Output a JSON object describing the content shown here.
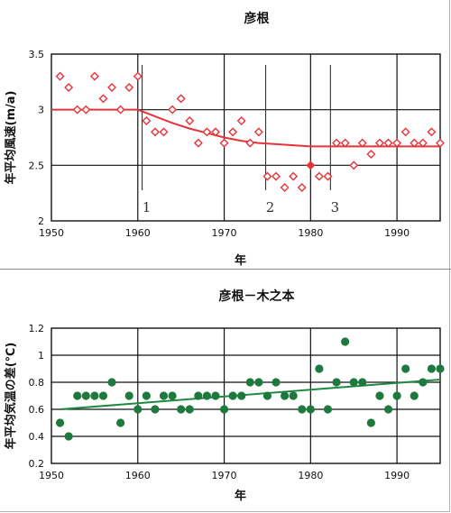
{
  "chart_data": [
    {
      "type": "scatter",
      "title": "彦根",
      "xlabel": "年",
      "ylabel": "年平均風速(m/a)",
      "xlim": [
        1950,
        1995
      ],
      "ylim": [
        2,
        3.5
      ],
      "xticks": [
        "1950",
        "1960",
        "1970",
        "1980",
        "1990"
      ],
      "yticks": [
        "2",
        "2.5",
        "3",
        "3.5"
      ],
      "grid": true,
      "marker_color": "#e8333a",
      "line_color": "#e8333a",
      "x": [
        1951,
        1952,
        1953,
        1954,
        1955,
        1956,
        1957,
        1958,
        1959,
        1960,
        1961,
        1962,
        1963,
        1964,
        1965,
        1966,
        1967,
        1968,
        1969,
        1970,
        1971,
        1972,
        1973,
        1974,
        1975,
        1976,
        1977,
        1978,
        1979,
        1980,
        1981,
        1982,
        1983,
        1984,
        1985,
        1986,
        1987,
        1988,
        1989,
        1990,
        1991,
        1992,
        1993,
        1994,
        1995
      ],
      "y": [
        3.3,
        3.2,
        3.0,
        3.0,
        3.3,
        3.1,
        3.2,
        3.0,
        3.2,
        3.3,
        2.9,
        2.8,
        2.8,
        3.0,
        3.1,
        2.9,
        2.7,
        2.8,
        2.8,
        2.7,
        2.8,
        2.9,
        2.7,
        2.8,
        2.4,
        2.4,
        2.3,
        2.4,
        2.3,
        2.5,
        2.4,
        2.4,
        2.7,
        2.7,
        2.5,
        2.7,
        2.6,
        2.7,
        2.7,
        2.7,
        2.8,
        2.7,
        2.7,
        2.8,
        2.7
      ],
      "trend": {
        "x": [
          1950,
          1960,
          1962,
          1964,
          1966,
          1968,
          1970,
          1972,
          1974,
          1976,
          1978,
          1980,
          1981,
          1995
        ],
        "y": [
          3.0,
          3.0,
          2.94,
          2.88,
          2.83,
          2.79,
          2.75,
          2.72,
          2.7,
          2.69,
          2.68,
          2.67,
          2.67,
          2.67
        ]
      },
      "annotations": [
        {
          "x": 1960.5,
          "label": "1"
        },
        {
          "x": 1974.8,
          "label": "2"
        },
        {
          "x": 1982.3,
          "label": "3"
        }
      ]
    },
    {
      "type": "scatter",
      "title": "彦根－木之本",
      "xlabel": "年",
      "ylabel": "年平均気温の差(℃)",
      "xlim": [
        1950,
        1995
      ],
      "ylim": [
        0.2,
        1.2
      ],
      "xticks": [
        "1950",
        "1960",
        "1970",
        "1980",
        "1990"
      ],
      "yticks": [
        "0.2",
        "0.4",
        "0.6",
        "0.8",
        "1",
        "1.2"
      ],
      "grid": true,
      "marker_color": "#1e7a3c",
      "line_color": "#1e8a40",
      "x": [
        1951,
        1952,
        1953,
        1954,
        1955,
        1956,
        1957,
        1958,
        1959,
        1960,
        1961,
        1962,
        1963,
        1964,
        1965,
        1966,
        1967,
        1968,
        1969,
        1970,
        1971,
        1972,
        1973,
        1974,
        1975,
        1976,
        1977,
        1978,
        1979,
        1980,
        1981,
        1982,
        1983,
        1984,
        1985,
        1986,
        1987,
        1988,
        1989,
        1990,
        1991,
        1992,
        1993,
        1994,
        1995
      ],
      "y": [
        0.5,
        0.4,
        0.7,
        0.7,
        0.7,
        0.7,
        0.8,
        0.5,
        0.7,
        0.6,
        0.7,
        0.6,
        0.7,
        0.7,
        0.6,
        0.6,
        0.7,
        0.7,
        0.7,
        0.6,
        0.7,
        0.7,
        0.8,
        0.8,
        0.7,
        0.8,
        0.7,
        0.7,
        0.6,
        0.6,
        0.9,
        0.6,
        0.8,
        1.1,
        0.8,
        0.8,
        0.5,
        0.7,
        0.6,
        0.7,
        0.9,
        0.7,
        0.8,
        0.9,
        0.9
      ],
      "trend": {
        "x": [
          1951,
          1995
        ],
        "y": [
          0.6,
          0.82
        ]
      }
    }
  ]
}
